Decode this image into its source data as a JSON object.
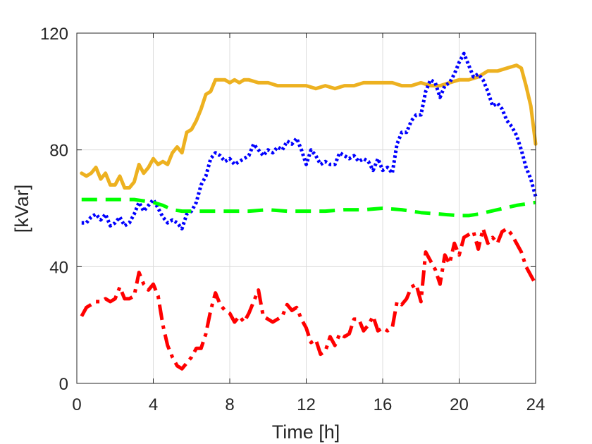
{
  "chart_data": {
    "type": "line",
    "xlabel": "Time [h]",
    "ylabel": "[kVar]",
    "xlim": [
      0,
      24
    ],
    "ylim": [
      0,
      120
    ],
    "xticks": [
      0,
      4,
      8,
      12,
      16,
      20,
      24
    ],
    "yticks": [
      0,
      40,
      80,
      120
    ],
    "grid": true,
    "series": [
      {
        "color": "#edb120",
        "dash": "solid",
        "points": [
          [
            0.25,
            72
          ],
          [
            0.5,
            71
          ],
          [
            0.75,
            72
          ],
          [
            1,
            74
          ],
          [
            1.25,
            70
          ],
          [
            1.5,
            72
          ],
          [
            1.75,
            68
          ],
          [
            2,
            68
          ],
          [
            2.25,
            71
          ],
          [
            2.5,
            67
          ],
          [
            2.75,
            67
          ],
          [
            3,
            69
          ],
          [
            3.25,
            75
          ],
          [
            3.5,
            72
          ],
          [
            3.75,
            74
          ],
          [
            4,
            77
          ],
          [
            4.25,
            75
          ],
          [
            4.5,
            76
          ],
          [
            4.75,
            75
          ],
          [
            5,
            79
          ],
          [
            5.25,
            81
          ],
          [
            5.5,
            79
          ],
          [
            5.75,
            86
          ],
          [
            6,
            87
          ],
          [
            6.25,
            90
          ],
          [
            6.5,
            94
          ],
          [
            6.75,
            99
          ],
          [
            7,
            100
          ],
          [
            7.25,
            104
          ],
          [
            7.5,
            104
          ],
          [
            7.75,
            104
          ],
          [
            8,
            103
          ],
          [
            8.25,
            104
          ],
          [
            8.5,
            103
          ],
          [
            8.75,
            104
          ],
          [
            9,
            104
          ],
          [
            9.5,
            103
          ],
          [
            10,
            103
          ],
          [
            10.5,
            102
          ],
          [
            11,
            102
          ],
          [
            11.5,
            102
          ],
          [
            12,
            102
          ],
          [
            12.5,
            101
          ],
          [
            13,
            102
          ],
          [
            13.5,
            101
          ],
          [
            14,
            102
          ],
          [
            14.5,
            102
          ],
          [
            15,
            103
          ],
          [
            15.5,
            103
          ],
          [
            16,
            103
          ],
          [
            16.5,
            103
          ],
          [
            17,
            102
          ],
          [
            17.5,
            102
          ],
          [
            18,
            103
          ],
          [
            18.5,
            102
          ],
          [
            19,
            102
          ],
          [
            19.5,
            103
          ],
          [
            20,
            104
          ],
          [
            20.5,
            104
          ],
          [
            21,
            105
          ],
          [
            21.5,
            107
          ],
          [
            22,
            107
          ],
          [
            22.5,
            108
          ],
          [
            23,
            109
          ],
          [
            23.25,
            108
          ],
          [
            23.5,
            102
          ],
          [
            23.75,
            95
          ],
          [
            24,
            82
          ]
        ]
      },
      {
        "color": "#0000ff",
        "dash": "dotted",
        "points": [
          [
            0.25,
            55
          ],
          [
            0.5,
            55
          ],
          [
            0.75,
            57
          ],
          [
            1,
            58
          ],
          [
            1.25,
            56
          ],
          [
            1.5,
            58
          ],
          [
            1.75,
            54
          ],
          [
            2,
            55
          ],
          [
            2.25,
            57
          ],
          [
            2.5,
            54
          ],
          [
            2.75,
            55
          ],
          [
            3,
            58
          ],
          [
            3.25,
            62
          ],
          [
            3.5,
            59
          ],
          [
            3.75,
            61
          ],
          [
            4,
            63
          ],
          [
            4.25,
            60
          ],
          [
            4.5,
            57
          ],
          [
            4.75,
            55
          ],
          [
            5,
            56
          ],
          [
            5.25,
            55
          ],
          [
            5.5,
            53
          ],
          [
            5.75,
            58
          ],
          [
            6,
            59
          ],
          [
            6.25,
            62
          ],
          [
            6.5,
            68
          ],
          [
            6.75,
            71
          ],
          [
            7,
            77
          ],
          [
            7.25,
            79
          ],
          [
            7.5,
            78
          ],
          [
            7.75,
            76
          ],
          [
            8,
            77
          ],
          [
            8.25,
            75
          ],
          [
            8.5,
            76
          ],
          [
            8.75,
            77
          ],
          [
            9,
            78
          ],
          [
            9.25,
            82
          ],
          [
            9.5,
            80
          ],
          [
            9.75,
            78
          ],
          [
            10,
            80
          ],
          [
            10.25,
            79
          ],
          [
            10.5,
            81
          ],
          [
            10.75,
            80
          ],
          [
            11,
            83
          ],
          [
            11.25,
            82
          ],
          [
            11.5,
            84
          ],
          [
            11.75,
            80
          ],
          [
            12,
            75
          ],
          [
            12.25,
            80
          ],
          [
            12.5,
            78
          ],
          [
            12.75,
            75
          ],
          [
            13,
            76
          ],
          [
            13.25,
            75
          ],
          [
            13.5,
            75
          ],
          [
            13.75,
            79
          ],
          [
            14,
            78
          ],
          [
            14.25,
            77
          ],
          [
            14.5,
            78
          ],
          [
            14.75,
            76
          ],
          [
            15,
            77
          ],
          [
            15.25,
            76
          ],
          [
            15.5,
            73
          ],
          [
            15.75,
            77
          ],
          [
            16,
            73
          ],
          [
            16.25,
            74
          ],
          [
            16.5,
            72
          ],
          [
            16.75,
            82
          ],
          [
            17,
            86
          ],
          [
            17.25,
            86
          ],
          [
            17.5,
            90
          ],
          [
            17.75,
            92
          ],
          [
            18,
            92
          ],
          [
            18.25,
            100
          ],
          [
            18.5,
            104
          ],
          [
            18.75,
            103
          ],
          [
            19,
            98
          ],
          [
            19.25,
            102
          ],
          [
            19.5,
            103
          ],
          [
            19.75,
            106
          ],
          [
            20,
            110
          ],
          [
            20.25,
            113
          ],
          [
            20.5,
            109
          ],
          [
            20.75,
            105
          ],
          [
            21,
            106
          ],
          [
            21.25,
            104
          ],
          [
            21.5,
            100
          ],
          [
            21.75,
            95
          ],
          [
            22,
            96
          ],
          [
            22.25,
            94
          ],
          [
            22.5,
            90
          ],
          [
            22.75,
            88
          ],
          [
            23,
            85
          ],
          [
            23.25,
            80
          ],
          [
            23.5,
            74
          ],
          [
            23.75,
            70
          ],
          [
            24,
            64
          ]
        ]
      },
      {
        "color": "#00ff00",
        "dash": "dashed",
        "points": [
          [
            0.25,
            63
          ],
          [
            1,
            63
          ],
          [
            2,
            63
          ],
          [
            3,
            63
          ],
          [
            4,
            62
          ],
          [
            4.5,
            61
          ],
          [
            5,
            59.5
          ],
          [
            5.5,
            59
          ],
          [
            6,
            59
          ],
          [
            7,
            59
          ],
          [
            8,
            59
          ],
          [
            9,
            59
          ],
          [
            10,
            59.5
          ],
          [
            11,
            59
          ],
          [
            12,
            59
          ],
          [
            13,
            59
          ],
          [
            14,
            59.5
          ],
          [
            15,
            59.5
          ],
          [
            16,
            60
          ],
          [
            17,
            59.5
          ],
          [
            18,
            58.5
          ],
          [
            19,
            58
          ],
          [
            20,
            57.5
          ],
          [
            20.5,
            57.5
          ],
          [
            21,
            58
          ],
          [
            22,
            59.5
          ],
          [
            23,
            61
          ],
          [
            24,
            62
          ]
        ]
      },
      {
        "color": "#ff0000",
        "dash": "dashdot",
        "points": [
          [
            0.25,
            23
          ],
          [
            0.5,
            26
          ],
          [
            0.75,
            27
          ],
          [
            1,
            28
          ],
          [
            1.25,
            28
          ],
          [
            1.5,
            29
          ],
          [
            1.75,
            28
          ],
          [
            2,
            29
          ],
          [
            2.25,
            33
          ],
          [
            2.5,
            29
          ],
          [
            2.75,
            29
          ],
          [
            3,
            30
          ],
          [
            3.25,
            38
          ],
          [
            3.5,
            34
          ],
          [
            3.75,
            32
          ],
          [
            4,
            34
          ],
          [
            4.25,
            30
          ],
          [
            4.5,
            20
          ],
          [
            4.75,
            13
          ],
          [
            5,
            9
          ],
          [
            5.25,
            6
          ],
          [
            5.5,
            5
          ],
          [
            5.75,
            7
          ],
          [
            6,
            9
          ],
          [
            6.25,
            12
          ],
          [
            6.5,
            12
          ],
          [
            6.75,
            17
          ],
          [
            7,
            25
          ],
          [
            7.25,
            31
          ],
          [
            7.5,
            27
          ],
          [
            7.75,
            25
          ],
          [
            8,
            24
          ],
          [
            8.25,
            21
          ],
          [
            8.5,
            23
          ],
          [
            8.75,
            21
          ],
          [
            9,
            24
          ],
          [
            9.25,
            28
          ],
          [
            9.5,
            32
          ],
          [
            9.75,
            23
          ],
          [
            10,
            22
          ],
          [
            10.25,
            21
          ],
          [
            10.5,
            22
          ],
          [
            10.75,
            23
          ],
          [
            11,
            27
          ],
          [
            11.25,
            25
          ],
          [
            11.5,
            26
          ],
          [
            11.75,
            22
          ],
          [
            12,
            19
          ],
          [
            12.25,
            14
          ],
          [
            12.5,
            15
          ],
          [
            12.75,
            10
          ],
          [
            13,
            11
          ],
          [
            13.25,
            16
          ],
          [
            13.5,
            13
          ],
          [
            13.75,
            17
          ],
          [
            14,
            16
          ],
          [
            14.25,
            17
          ],
          [
            14.5,
            22
          ],
          [
            14.75,
            22
          ],
          [
            15,
            18
          ],
          [
            15.25,
            20
          ],
          [
            15.5,
            23
          ],
          [
            15.75,
            18
          ],
          [
            16,
            19
          ],
          [
            16.25,
            18
          ],
          [
            16.5,
            19
          ],
          [
            16.75,
            28
          ],
          [
            17,
            27
          ],
          [
            17.25,
            29
          ],
          [
            17.5,
            33
          ],
          [
            17.75,
            34
          ],
          [
            18,
            28
          ],
          [
            18.25,
            45
          ],
          [
            18.5,
            42
          ],
          [
            18.75,
            39
          ],
          [
            19,
            34
          ],
          [
            19.25,
            44
          ],
          [
            19.5,
            41
          ],
          [
            19.75,
            48
          ],
          [
            20,
            44
          ],
          [
            20.25,
            50
          ],
          [
            20.5,
            51
          ],
          [
            20.75,
            52
          ],
          [
            21,
            46
          ],
          [
            21.25,
            53
          ],
          [
            21.5,
            48
          ],
          [
            21.75,
            50
          ],
          [
            22,
            48
          ],
          [
            22.25,
            52
          ],
          [
            22.5,
            53
          ],
          [
            22.75,
            51
          ],
          [
            23,
            48
          ],
          [
            23.25,
            45
          ],
          [
            23.5,
            40
          ],
          [
            23.75,
            37
          ],
          [
            24,
            34
          ]
        ]
      }
    ]
  }
}
